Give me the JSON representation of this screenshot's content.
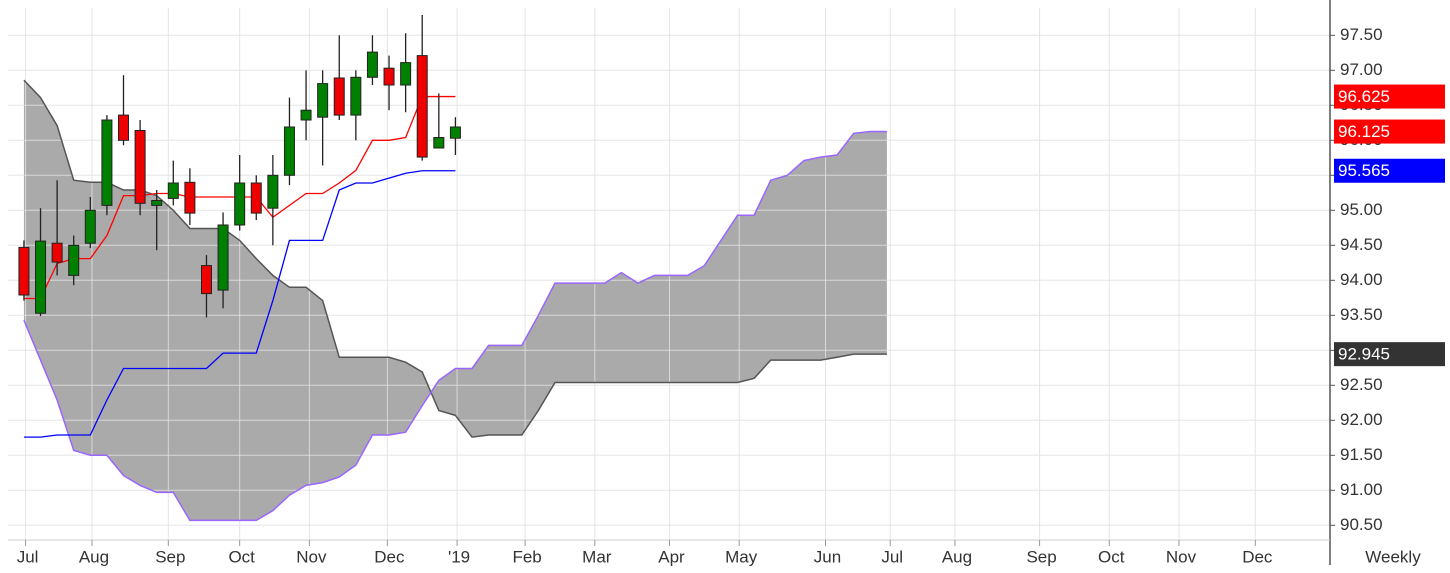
{
  "chart_data": {
    "type": "candlestick",
    "interval_label": "Weekly",
    "xlim": [
      -0.96,
      78.7
    ],
    "ylim": [
      90.29,
      97.89
    ],
    "yticks": [
      {
        "value": 90.5,
        "label": "90.50"
      },
      {
        "value": 91,
        "label": "91.00"
      },
      {
        "value": 91.5,
        "label": "91.50"
      },
      {
        "value": 92,
        "label": "92.00"
      },
      {
        "value": 92.5,
        "label": "92.50"
      },
      {
        "value": 93,
        "label": "93.00"
      },
      {
        "value": 93.5,
        "label": "93.50"
      },
      {
        "value": 94,
        "label": "94.00"
      },
      {
        "value": 94.5,
        "label": "94.50"
      },
      {
        "value": 95,
        "label": "95.00"
      },
      {
        "value": 95.5,
        "label": "95.50"
      },
      {
        "value": 96,
        "label": "96.00"
      },
      {
        "value": 96.5,
        "label": "96.50"
      },
      {
        "value": 97,
        "label": "97.00"
      },
      {
        "value": 97.5,
        "label": "97.50"
      }
    ],
    "xticks": [
      {
        "value": 0.1,
        "label": "Jul"
      },
      {
        "value": 4.1,
        "label": "Aug"
      },
      {
        "value": 8.7,
        "label": "Sep"
      },
      {
        "value": 13,
        "label": "Oct"
      },
      {
        "value": 17.2,
        "label": "Nov"
      },
      {
        "value": 21.9,
        "label": "Dec"
      },
      {
        "value": 26.1,
        "label": "'19"
      },
      {
        "value": 30.2,
        "label": "Feb"
      },
      {
        "value": 34.4,
        "label": "Mar"
      },
      {
        "value": 38.9,
        "label": "Apr"
      },
      {
        "value": 43.1,
        "label": "May"
      },
      {
        "value": 48.3,
        "label": "Jun"
      },
      {
        "value": 52.2,
        "label": "Jul"
      },
      {
        "value": 56.1,
        "label": "Aug"
      },
      {
        "value": 61.2,
        "label": "Sep"
      },
      {
        "value": 65.4,
        "label": "Oct"
      },
      {
        "value": 69.6,
        "label": "Nov"
      },
      {
        "value": 74.2,
        "label": "Dec"
      }
    ],
    "grid": true,
    "candles": {
      "up_color": "#008000",
      "down_color": "#ee0000",
      "x": [
        0,
        1,
        2,
        3,
        4,
        5,
        6,
        7,
        8,
        9,
        10,
        11,
        12,
        13,
        14,
        15,
        16,
        17,
        18,
        19,
        20,
        21,
        22,
        23,
        24,
        25,
        26
      ],
      "open": [
        94.47,
        93.53,
        94.53,
        94.07,
        94.53,
        95.07,
        96.36,
        96.14,
        95.07,
        95.17,
        95.4,
        94.21,
        93.86,
        94.79,
        95.39,
        95.03,
        95.5,
        96.29,
        96.33,
        96.89,
        96.36,
        96.9,
        97.03,
        96.79,
        97.21,
        95.89,
        96.03
      ],
      "high": [
        94.57,
        95.03,
        95.43,
        94.64,
        95.19,
        96.36,
        96.93,
        96.29,
        95.29,
        95.71,
        95.6,
        94.36,
        94.97,
        95.79,
        95.5,
        95.79,
        96.61,
        97.0,
        97.0,
        97.5,
        97.0,
        97.5,
        97.21,
        97.53,
        97.79,
        96.67,
        96.33
      ],
      "low": [
        93.71,
        93.49,
        94.07,
        93.93,
        94.46,
        94.93,
        95.93,
        94.93,
        94.43,
        95.07,
        94.79,
        93.47,
        93.6,
        94.71,
        94.86,
        94.5,
        95.36,
        96.0,
        95.64,
        96.29,
        96.0,
        96.79,
        96.43,
        96.4,
        95.71,
        95.89,
        95.79
      ],
      "close": [
        93.79,
        94.56,
        94.26,
        94.5,
        95.0,
        96.29,
        96.0,
        95.1,
        95.14,
        95.39,
        94.96,
        93.81,
        94.79,
        95.39,
        94.96,
        95.5,
        96.19,
        96.43,
        96.81,
        96.36,
        96.9,
        97.26,
        96.79,
        97.11,
        95.76,
        96.04,
        96.19
      ]
    },
    "conversion_line": {
      "color": "#ff0000",
      "values": [
        93.74,
        93.74,
        94.24,
        94.31,
        94.31,
        94.64,
        95.21,
        95.21,
        95.24,
        95.24,
        95.19,
        95.19,
        95.19,
        95.19,
        95.19,
        94.9,
        95.07,
        95.24,
        95.24,
        95.39,
        95.57,
        96.0,
        96.0,
        96.04,
        96.625,
        96.625,
        96.625
      ]
    },
    "base_line": {
      "color": "#0000ff",
      "values": [
        91.76,
        91.76,
        91.79,
        91.79,
        91.79,
        92.29,
        92.74,
        92.74,
        92.74,
        92.74,
        92.74,
        92.74,
        92.96,
        92.96,
        92.96,
        93.71,
        94.57,
        94.57,
        94.57,
        95.29,
        95.39,
        95.39,
        95.46,
        95.53,
        95.565,
        95.565,
        95.565
      ]
    },
    "cloud": {
      "fill": "#aaaaaa",
      "x": [
        0,
        1,
        2,
        3,
        4,
        5,
        6,
        7,
        8,
        9,
        10,
        11,
        12,
        13,
        14,
        15,
        16,
        17,
        18,
        19,
        20,
        21,
        22,
        23,
        24,
        25,
        26,
        27,
        28,
        29,
        30,
        31,
        32,
        33,
        34,
        35,
        36,
        37,
        38,
        39,
        40,
        41,
        42,
        43,
        44,
        45,
        46,
        47,
        48,
        49,
        50,
        51,
        52
      ],
      "span_a": {
        "color": "#555555",
        "values": [
          96.86,
          96.61,
          96.21,
          95.43,
          95.4,
          95.4,
          95.29,
          95.29,
          95.21,
          95.0,
          94.74,
          94.74,
          94.74,
          94.57,
          94.31,
          94.07,
          93.9,
          93.9,
          93.71,
          92.9,
          92.9,
          92.9,
          92.9,
          92.83,
          92.69,
          92.14,
          92.07,
          91.76,
          91.79,
          91.79,
          91.79,
          92.14,
          92.54,
          92.54,
          92.54,
          92.54,
          92.54,
          92.54,
          92.54,
          92.54,
          92.54,
          92.54,
          92.54,
          92.54,
          92.6,
          92.86,
          92.86,
          92.86,
          92.86,
          92.9,
          92.945,
          92.945,
          92.945
        ]
      },
      "span_b": {
        "color": "#9966ff",
        "values": [
          93.43,
          92.86,
          92.29,
          91.57,
          91.5,
          91.5,
          91.21,
          91.07,
          90.97,
          90.97,
          90.57,
          90.57,
          90.57,
          90.57,
          90.57,
          90.71,
          90.93,
          91.07,
          91.11,
          91.19,
          91.36,
          91.79,
          91.79,
          91.83,
          92.21,
          92.57,
          92.74,
          92.74,
          93.07,
          93.07,
          93.07,
          93.5,
          93.96,
          93.96,
          93.96,
          93.96,
          94.11,
          93.96,
          94.07,
          94.07,
          94.07,
          94.21,
          94.57,
          94.93,
          94.93,
          95.43,
          95.5,
          95.71,
          95.76,
          95.79,
          96.1,
          96.125,
          96.125
        ]
      }
    },
    "price_tags": [
      {
        "value": 96.625,
        "color": "#ff0000"
      },
      {
        "value": 96.125,
        "color": "#ff0000"
      },
      {
        "value": 95.565,
        "color": "#0000ff"
      },
      {
        "value": 92.945,
        "color": "#333333"
      }
    ]
  }
}
